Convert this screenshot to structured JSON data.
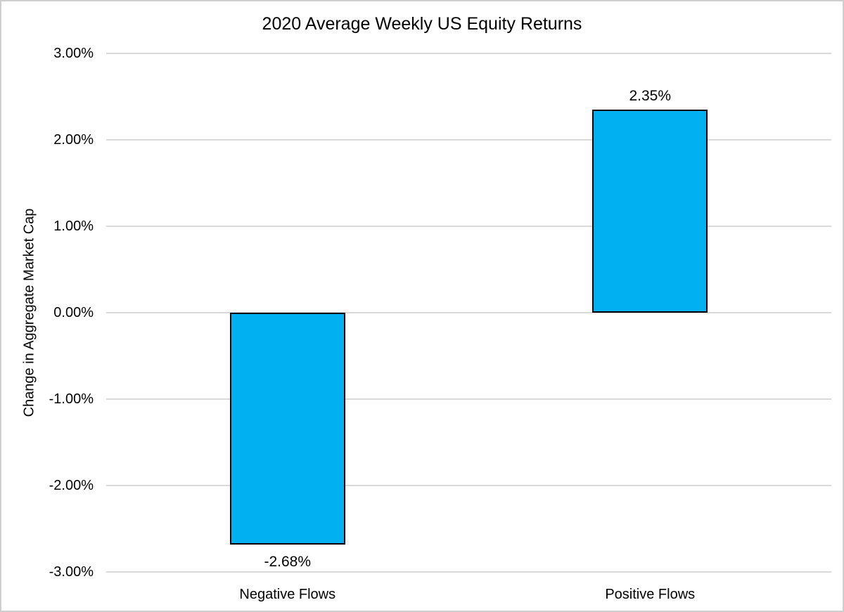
{
  "chart_data": {
    "type": "bar",
    "title": "2020 Average Weekly US Equity Returns",
    "xlabel": "",
    "ylabel": "Change in Aggregate Market Cap",
    "categories": [
      "Negative Flows",
      "Positive Flows"
    ],
    "values": [
      -2.68,
      2.35
    ],
    "data_labels": [
      "-2.68%",
      "2.35%"
    ],
    "yticks": [
      3,
      2,
      1,
      0,
      -1,
      -2,
      -3
    ],
    "ytick_labels": [
      "3.00%",
      "2.00%",
      "1.00%",
      "0.00%",
      "-1.00%",
      "-2.00%",
      "-3.00%"
    ],
    "ylim": [
      -3,
      3
    ],
    "grid": true,
    "legend": false,
    "colors": {
      "bar_fill": "#00B0F0",
      "bar_border": "#000000",
      "gridline": "#D9D9D9",
      "text": "#000000",
      "background": "#FFFFFF",
      "frame_border": "#CFCFCF"
    }
  }
}
